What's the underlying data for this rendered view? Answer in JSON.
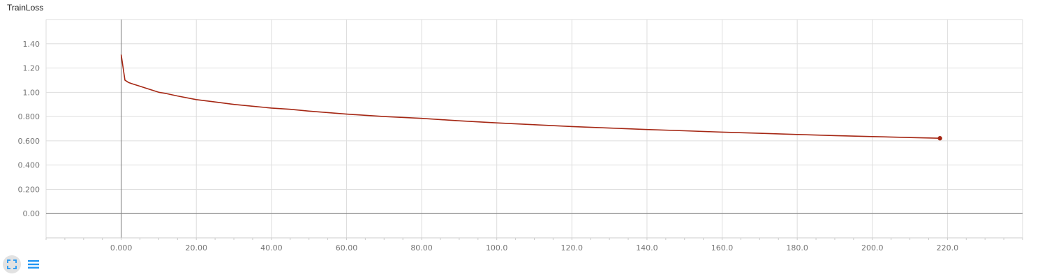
{
  "chart_data": {
    "type": "line",
    "title": "TrainLoss",
    "xlabel": "",
    "ylabel": "",
    "xlim": [
      -20,
      240
    ],
    "ylim": [
      -0.2,
      1.6
    ],
    "x_ticks": [
      0,
      20,
      40,
      60,
      80,
      100,
      120,
      140,
      160,
      180,
      200,
      220
    ],
    "x_tick_labels": [
      "0.000",
      "20.00",
      "40.00",
      "60.00",
      "80.00",
      "100.0",
      "120.0",
      "140.0",
      "160.0",
      "180.0",
      "200.0",
      "220.0"
    ],
    "y_ticks": [
      0,
      0.2,
      0.4,
      0.6,
      0.8,
      1.0,
      1.2,
      1.4
    ],
    "y_tick_labels": [
      "0.00",
      "0.200",
      "0.400",
      "0.600",
      "0.800",
      "1.00",
      "1.20",
      "1.40"
    ],
    "grid": true,
    "series": [
      {
        "color": "#a52714",
        "x": [
          0,
          1,
          2,
          3,
          5,
          7,
          10,
          12,
          15,
          20,
          25,
          30,
          35,
          40,
          45,
          50,
          60,
          70,
          80,
          90,
          100,
          110,
          120,
          130,
          140,
          150,
          160,
          170,
          180,
          190,
          200,
          210,
          218
        ],
        "y": [
          1.31,
          1.1,
          1.08,
          1.07,
          1.05,
          1.03,
          1.0,
          0.99,
          0.97,
          0.94,
          0.92,
          0.9,
          0.885,
          0.87,
          0.86,
          0.845,
          0.82,
          0.8,
          0.785,
          0.765,
          0.748,
          0.733,
          0.718,
          0.705,
          0.693,
          0.683,
          0.672,
          0.662,
          0.652,
          0.643,
          0.635,
          0.627,
          0.621
        ]
      }
    ]
  },
  "toolbar": {
    "fit_icon": "fit-domain-icon",
    "data_icon": "data-table-icon"
  }
}
